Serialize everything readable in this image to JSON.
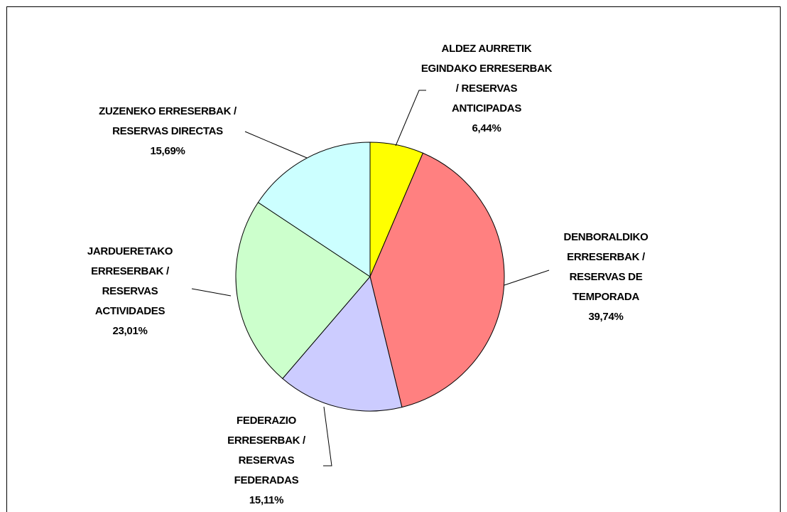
{
  "chart_data": {
    "type": "pie",
    "categories": [
      "ALDEZ AURRETIK EGINDAKO ERRESERBAK / RESERVAS ANTICIPADAS",
      "DENBORALDIKO ERRESERBAK / RESERVAS DE TEMPORADA",
      "FEDERAZIO ERRESERBAK / RESERVAS FEDERADAS",
      "JARDUERETAKO ERRESERBAK / RESERVAS ACTIVIDADES",
      "ZUZENEKO ERRESERBAK / RESERVAS DIRECTAS"
    ],
    "values": [
      6.44,
      39.74,
      15.11,
      23.01,
      15.69
    ],
    "value_labels": [
      "6,44%",
      "39,74%",
      "15,11%",
      "23,01%",
      "15,69%"
    ],
    "colors": [
      "#ffff00",
      "#ff8080",
      "#ccccff",
      "#ccffcc",
      "#ccffff"
    ]
  }
}
